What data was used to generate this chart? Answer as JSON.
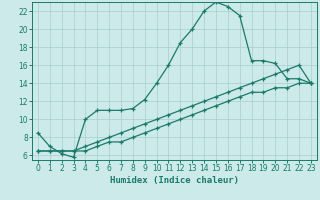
{
  "title": "",
  "xlabel": "Humidex (Indice chaleur)",
  "bg_color": "#cceaea",
  "grid_color": "#aacccc",
  "line_color": "#1a7a6a",
  "xlim": [
    -0.5,
    23.5
  ],
  "ylim": [
    5.5,
    23.0
  ],
  "xticks": [
    0,
    1,
    2,
    3,
    4,
    5,
    6,
    7,
    8,
    9,
    10,
    11,
    12,
    13,
    14,
    15,
    16,
    17,
    18,
    19,
    20,
    21,
    22,
    23
  ],
  "yticks": [
    6,
    8,
    10,
    12,
    14,
    16,
    18,
    20,
    22
  ],
  "line1_x": [
    0,
    1,
    2,
    3,
    4,
    5,
    6,
    7,
    8,
    9,
    10,
    11,
    12,
    13,
    14,
    15,
    16,
    17,
    18,
    19,
    20,
    21,
    22,
    23
  ],
  "line1_y": [
    8.5,
    7.0,
    6.2,
    5.8,
    10.0,
    11.0,
    11.0,
    11.0,
    11.2,
    12.2,
    14.0,
    16.0,
    18.5,
    20.0,
    22.0,
    23.0,
    22.5,
    21.5,
    16.5,
    16.5,
    16.2,
    14.5,
    14.5,
    14.0
  ],
  "line2_x": [
    0,
    1,
    2,
    3,
    4,
    5,
    6,
    7,
    8,
    9,
    10,
    11,
    12,
    13,
    14,
    15,
    16,
    17,
    18,
    19,
    20,
    21,
    22,
    23
  ],
  "line2_y": [
    6.5,
    6.5,
    6.5,
    6.5,
    7.0,
    7.5,
    8.0,
    8.5,
    9.0,
    9.5,
    10.0,
    10.5,
    11.0,
    11.5,
    12.0,
    12.5,
    13.0,
    13.5,
    14.0,
    14.5,
    15.0,
    15.5,
    16.0,
    14.0
  ],
  "line3_x": [
    0,
    1,
    2,
    3,
    4,
    5,
    6,
    7,
    8,
    9,
    10,
    11,
    12,
    13,
    14,
    15,
    16,
    17,
    18,
    19,
    20,
    21,
    22,
    23
  ],
  "line3_y": [
    6.5,
    6.5,
    6.5,
    6.5,
    6.5,
    7.0,
    7.5,
    7.5,
    8.0,
    8.5,
    9.0,
    9.5,
    10.0,
    10.5,
    11.0,
    11.5,
    12.0,
    12.5,
    13.0,
    13.0,
    13.5,
    13.5,
    14.0,
    14.0
  ]
}
